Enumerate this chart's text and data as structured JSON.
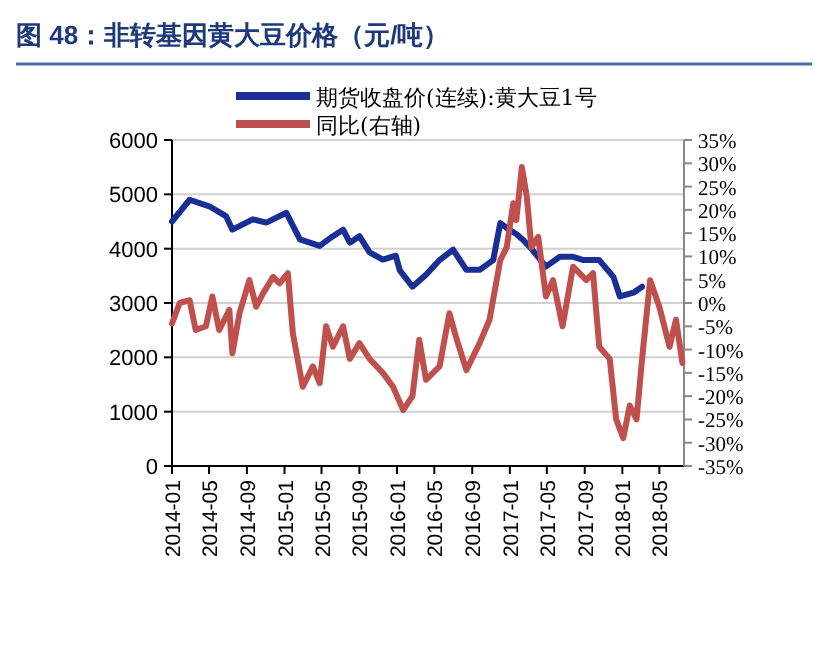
{
  "chart_data": {
    "type": "line",
    "title": "图 48：非转基因黄大豆价格（元/吨）",
    "series": [
      {
        "name": "期货收盘价(连续):黄大豆1号",
        "color": "#1a2f96",
        "axis": "y",
        "x": [
          "2014-01-01",
          "2014-02-27",
          "2014-05-02",
          "2014-06-25",
          "2014-07-16",
          "2014-09-20",
          "2014-11-03",
          "2015-01-07",
          "2015-02-20",
          "2015-04-25",
          "2015-06-07",
          "2015-07-10",
          "2015-08-01",
          "2015-09-01",
          "2015-10-04",
          "2015-11-16",
          "2015-12-28",
          "2016-01-10",
          "2016-02-20",
          "2016-04-04",
          "2016-05-18",
          "2016-07-01",
          "2016-08-13",
          "2016-09-25",
          "2016-11-08",
          "2016-12-01",
          "2017-01-01",
          "2017-01-22",
          "2017-02-15",
          "2017-03-15",
          "2017-04-28",
          "2017-06-12",
          "2017-07-25",
          "2017-08-28",
          "2017-10-18",
          "2017-12-03",
          "2017-12-24",
          "2018-02-06",
          "2018-03-06"
        ],
        "values": [
          4500,
          4900,
          4780,
          4600,
          4350,
          4540,
          4480,
          4660,
          4170,
          4050,
          4230,
          4350,
          4110,
          4230,
          3930,
          3800,
          3870,
          3600,
          3300,
          3520,
          3790,
          3980,
          3610,
          3610,
          3790,
          4470,
          4340,
          4270,
          4150,
          3980,
          3670,
          3850,
          3850,
          3790,
          3790,
          3480,
          3120,
          3190,
          3300
        ]
      },
      {
        "name": "同比(右轴)",
        "color": "#c0504d",
        "axis": "y2",
        "x": [
          "2014-01-01",
          "2014-01-26",
          "2014-02-27",
          "2014-03-19",
          "2014-04-21",
          "2014-05-12",
          "2014-06-03",
          "2014-07-06",
          "2014-07-16",
          "2014-08-08",
          "2014-09-09",
          "2014-10-01",
          "2014-10-23",
          "2014-11-25",
          "2014-12-16",
          "2015-01-12",
          "2015-01-28",
          "2015-03-01",
          "2015-04-03",
          "2015-04-25",
          "2015-05-16",
          "2015-06-07",
          "2015-07-10",
          "2015-08-01",
          "2015-09-01",
          "2015-10-04",
          "2015-11-16",
          "2015-12-19",
          "2016-01-21",
          "2016-02-20",
          "2016-03-13",
          "2016-04-04",
          "2016-05-18",
          "2016-06-19",
          "2016-07-10",
          "2016-08-13",
          "2016-09-25",
          "2016-10-27",
          "2016-12-01",
          "2016-12-22",
          "2017-01-12",
          "2017-01-22",
          "2017-02-09",
          "2017-02-25",
          "2017-03-12",
          "2017-04-03",
          "2017-04-28",
          "2017-05-21",
          "2017-06-21",
          "2017-07-25",
          "2017-09-06",
          "2017-09-28",
          "2017-10-18",
          "2017-11-21",
          "2017-12-12",
          "2018-01-04",
          "2018-01-25",
          "2018-02-16",
          "2018-03-06",
          "2018-04-01",
          "2018-05-01",
          "2018-06-03",
          "2018-06-24",
          "2018-07-15"
        ],
        "values": [
          -4.4,
          0,
          0.6,
          -5.8,
          -5,
          1.4,
          -5.8,
          -1.5,
          -10.8,
          -2.2,
          4.9,
          -0.8,
          2,
          5.6,
          4.2,
          6.4,
          -6.5,
          -18,
          -13.6,
          -17.2,
          -5,
          -9.4,
          -5,
          -12,
          -8.6,
          -12,
          -15,
          -18,
          -23,
          -20,
          -7.9,
          -16.5,
          -13.6,
          -2.2,
          -7.2,
          -14.4,
          -8.6,
          -3.6,
          9.2,
          12,
          21.4,
          17.8,
          29.2,
          22.8,
          12,
          14.2,
          1.4,
          4.9,
          -5,
          7.8,
          4.9,
          6.4,
          -9.4,
          -12,
          -25,
          -29,
          -22,
          -25,
          -12,
          4.9,
          -0.8,
          -9.4,
          -3.6,
          -12.9
        ]
      }
    ],
    "xlim": [
      "2014-01-01",
      "2018-07-20"
    ],
    "xticks": [
      "2014-01",
      "2014-05",
      "2014-09",
      "2015-01",
      "2015-05",
      "2015-09",
      "2016-01",
      "2016-05",
      "2016-09",
      "2017-01",
      "2017-05",
      "2017-09",
      "2018-01",
      "2018-05"
    ],
    "ylim": [
      0,
      6000
    ],
    "yticks": [
      0,
      1000,
      2000,
      3000,
      4000,
      5000,
      6000
    ],
    "y2lim": [
      -35,
      35
    ],
    "y2ticks": [
      {
        "value": 35,
        "label": "35%"
      },
      {
        "value": 30,
        "label": "30%"
      },
      {
        "value": 25,
        "label": "25%"
      },
      {
        "value": 20,
        "label": "20%"
      },
      {
        "value": 15,
        "label": "15%"
      },
      {
        "value": 10,
        "label": "10%"
      },
      {
        "value": 5,
        "label": "5%"
      },
      {
        "value": 0,
        "label": "0%"
      },
      {
        "value": -5,
        "label": "-5%"
      },
      {
        "value": -10,
        "label": "-10%"
      },
      {
        "value": -15,
        "label": "-15%"
      },
      {
        "value": -20,
        "label": "-20%"
      },
      {
        "value": -25,
        "label": "-25%"
      },
      {
        "value": -30,
        "label": "-30%"
      },
      {
        "value": -35,
        "label": "-35%"
      }
    ],
    "grid": "y",
    "legend": "top",
    "line_style": "solid",
    "marker": "none"
  }
}
